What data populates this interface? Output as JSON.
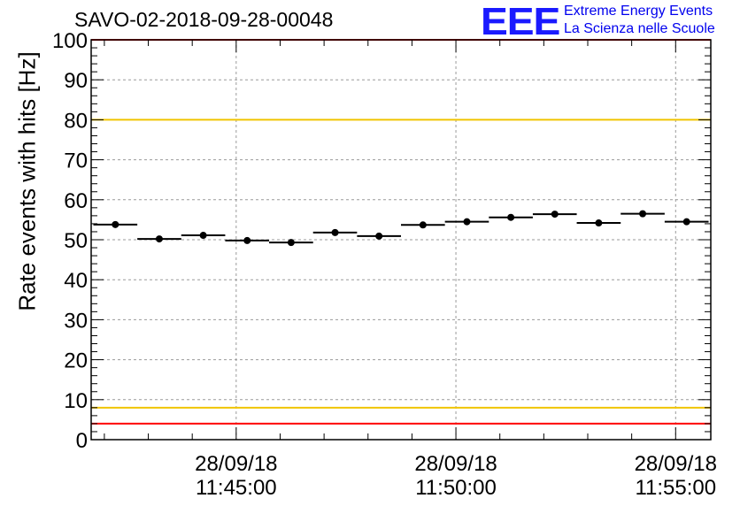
{
  "chart_data": {
    "type": "scatter",
    "title": "SAVO-02-2018-09-28-00048",
    "ylabel": "Rate events with hits [Hz]",
    "xlabel": "",
    "ylim": [
      0,
      100
    ],
    "y_ticks": [
      0,
      10,
      20,
      30,
      40,
      50,
      60,
      70,
      80,
      90,
      100
    ],
    "x_range_minutes": [
      -13.3,
      0.8
    ],
    "x_ticks": [
      {
        "minute": -10,
        "date": "28/09/18",
        "time": "11:45:00"
      },
      {
        "minute": -5,
        "date": "28/09/18",
        "time": "11:50:00"
      },
      {
        "minute": 0,
        "date": "28/09/18",
        "time": "11:55:00"
      }
    ],
    "bin_width_minutes": 1,
    "series": [
      {
        "name": "rate",
        "x": [
          -12.75,
          -11.75,
          -10.75,
          -9.75,
          -8.75,
          -7.75,
          -6.75,
          -5.75,
          -4.75,
          -3.75,
          -2.75,
          -1.75,
          -0.75,
          0.25
        ],
        "values": [
          53.8,
          50.2,
          51.1,
          49.8,
          49.3,
          51.8,
          50.9,
          53.7,
          54.5,
          55.6,
          56.4,
          54.2,
          56.5,
          54.5
        ]
      }
    ],
    "threshold_lines": [
      {
        "name": "upper-red",
        "value": 100,
        "color": "#ff0000"
      },
      {
        "name": "upper-yellow",
        "value": 80,
        "color": "#f0c400"
      },
      {
        "name": "lower-yellow",
        "value": 8,
        "color": "#f0c400"
      },
      {
        "name": "lower-red",
        "value": 4,
        "color": "#ff0000"
      }
    ],
    "grid": true
  },
  "logo": {
    "mark": "EEE",
    "line1": "Extreme Energy Events",
    "line2": "La Scienza nelle Scuole",
    "color": "#0000ee"
  }
}
